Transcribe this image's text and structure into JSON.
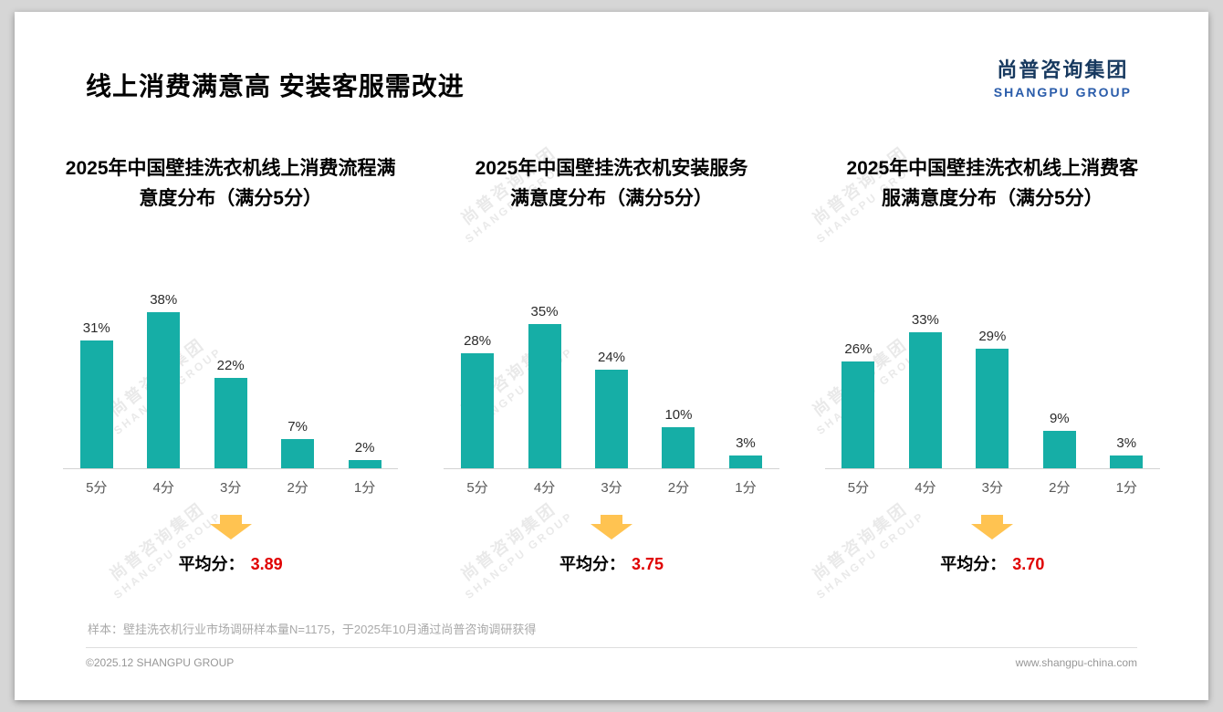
{
  "page_title": "线上消费满意高 安装客服需改进",
  "logo": {
    "cn": "尚普咨询集团",
    "en": "SHANGPU GROUP"
  },
  "watermark": {
    "line1": "尚普咨询集团",
    "line2": "SHANGPU GROUP"
  },
  "colors": {
    "bar": "#16aea6",
    "average": "#e00000",
    "arrow": "#ffc351"
  },
  "chart_data": [
    {
      "type": "bar",
      "title": "2025年中国壁挂洗衣机线上消费流程满意度分布（满分5分）",
      "title_lines": [
        "2025年中国壁挂洗衣机线上消费流程满",
        "意度分布（满分5分）"
      ],
      "categories": [
        "5分",
        "4分",
        "3分",
        "2分",
        "1分"
      ],
      "values": [
        31,
        38,
        22,
        7,
        2
      ],
      "value_labels": [
        "31%",
        "38%",
        "22%",
        "7%",
        "2%"
      ],
      "average_label": "平均分：",
      "average_value": "3.89",
      "xlabel": "",
      "ylabel": "",
      "ylim": [
        0,
        40
      ],
      "grid": false
    },
    {
      "type": "bar",
      "title": "2025年中国壁挂洗衣机安装服务满意度分布（满分5分）",
      "title_lines": [
        "2025年中国壁挂洗衣机安装服务",
        "满意度分布（满分5分）"
      ],
      "categories": [
        "5分",
        "4分",
        "3分",
        "2分",
        "1分"
      ],
      "values": [
        28,
        35,
        24,
        10,
        3
      ],
      "value_labels": [
        "28%",
        "35%",
        "24%",
        "10%",
        "3%"
      ],
      "average_label": "平均分：",
      "average_value": "3.75",
      "xlabel": "",
      "ylabel": "",
      "ylim": [
        0,
        40
      ],
      "grid": false
    },
    {
      "type": "bar",
      "title": "2025年中国壁挂洗衣机线上消费客服满意度分布（满分5分）",
      "title_lines": [
        "2025年中国壁挂洗衣机线上消费客",
        "服满意度分布（满分5分）"
      ],
      "categories": [
        "5分",
        "4分",
        "3分",
        "2分",
        "1分"
      ],
      "values": [
        26,
        33,
        29,
        9,
        3
      ],
      "value_labels": [
        "26%",
        "33%",
        "29%",
        "9%",
        "3%"
      ],
      "average_label": "平均分：",
      "average_value": "3.70",
      "xlabel": "",
      "ylabel": "",
      "ylim": [
        0,
        40
      ],
      "grid": false
    }
  ],
  "footnote": "样本：壁挂洗衣机行业市场调研样本量N=1175，于2025年10月通过尚普咨询调研获得",
  "footer": {
    "left": "©2025.12 SHANGPU GROUP",
    "right": "www.shangpu-china.com"
  }
}
